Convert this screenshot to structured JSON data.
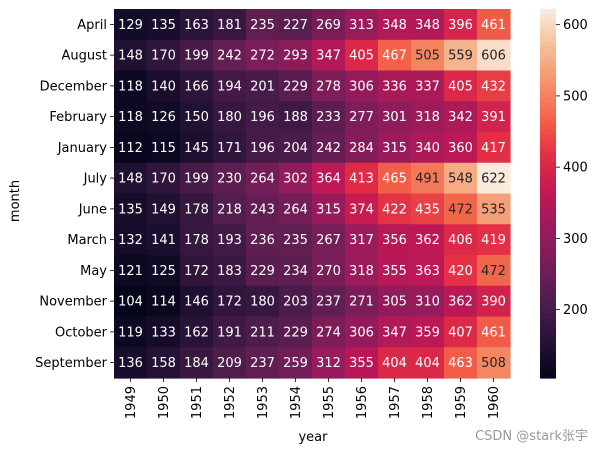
{
  "chart_data": {
    "type": "heatmap",
    "title": "",
    "xlabel": "year",
    "ylabel": "month",
    "x_categories": [
      "1949",
      "1950",
      "1951",
      "1952",
      "1953",
      "1954",
      "1955",
      "1956",
      "1957",
      "1958",
      "1959",
      "1960"
    ],
    "y_categories": [
      "April",
      "August",
      "December",
      "February",
      "January",
      "July",
      "June",
      "March",
      "May",
      "November",
      "October",
      "September"
    ],
    "values": [
      [
        129,
        135,
        163,
        181,
        235,
        227,
        269,
        313,
        348,
        348,
        396,
        461
      ],
      [
        148,
        170,
        199,
        242,
        272,
        293,
        347,
        405,
        467,
        505,
        559,
        606
      ],
      [
        118,
        140,
        166,
        194,
        201,
        229,
        278,
        306,
        336,
        337,
        405,
        432
      ],
      [
        118,
        126,
        150,
        180,
        196,
        188,
        233,
        277,
        301,
        318,
        342,
        391
      ],
      [
        112,
        115,
        145,
        171,
        196,
        204,
        242,
        284,
        315,
        340,
        360,
        417
      ],
      [
        148,
        170,
        199,
        230,
        264,
        302,
        364,
        413,
        465,
        491,
        548,
        622
      ],
      [
        135,
        149,
        178,
        218,
        243,
        264,
        315,
        374,
        422,
        435,
        472,
        535
      ],
      [
        132,
        141,
        178,
        193,
        236,
        235,
        267,
        317,
        356,
        362,
        406,
        419
      ],
      [
        121,
        125,
        172,
        183,
        229,
        234,
        270,
        318,
        355,
        363,
        420,
        472
      ],
      [
        104,
        114,
        146,
        172,
        180,
        203,
        237,
        271,
        305,
        310,
        362,
        390
      ],
      [
        119,
        133,
        162,
        191,
        211,
        229,
        274,
        306,
        347,
        359,
        407,
        461
      ],
      [
        136,
        158,
        184,
        209,
        237,
        259,
        312,
        355,
        404,
        404,
        463,
        508
      ]
    ],
    "value_range": [
      104,
      622
    ],
    "colorbar_ticks": [
      200,
      300,
      400,
      500,
      600
    ],
    "colormap": "rocket",
    "annotated": true
  },
  "watermark": "CSDN @stark张宇"
}
